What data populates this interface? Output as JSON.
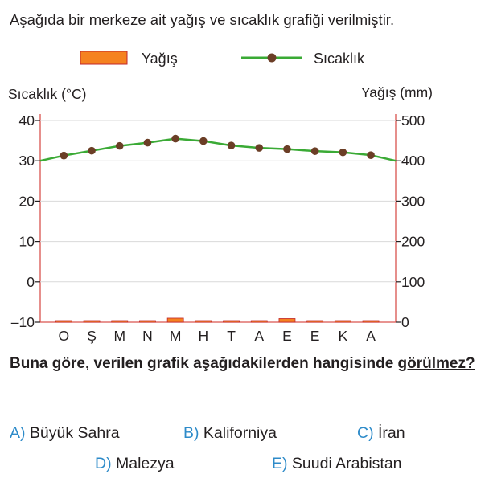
{
  "intro": "Aşağıda bir merkeze ait yağış ve sıcaklık grafiği verilmiştir.",
  "chart_data": {
    "type": "bar+line",
    "categories": [
      "O",
      "Ş",
      "M",
      "N",
      "M",
      "H",
      "T",
      "A",
      "E",
      "E",
      "K",
      "A"
    ],
    "legend": {
      "rain": "Yağış",
      "temp": "Sıcaklık"
    },
    "left_axis": {
      "label": "Sıcaklık (°C)",
      "ylim": [
        -10,
        40
      ],
      "ticks": [
        "40",
        "30",
        "20",
        "10",
        "0",
        "–10"
      ],
      "tick_values": [
        40,
        30,
        20,
        10,
        0,
        -10
      ]
    },
    "right_axis": {
      "label": "Yağış (mm)",
      "ylim": [
        0,
        500
      ],
      "ticks": [
        "500",
        "400",
        "300",
        "200",
        "100",
        "0"
      ],
      "tick_values": [
        500,
        400,
        300,
        200,
        100,
        0
      ]
    },
    "series": [
      {
        "name": "Sıcaklık",
        "axis": "left",
        "values": [
          31.3,
          32.5,
          33.7,
          34.5,
          35.5,
          34.9,
          33.8,
          33.2,
          32.9,
          32.4,
          32.1,
          31.4
        ],
        "ends": [
          30,
          30
        ]
      },
      {
        "name": "Yağış",
        "axis": "right",
        "values": [
          3,
          3,
          3,
          2,
          10,
          3,
          3,
          3,
          9,
          3,
          3,
          3
        ]
      }
    ],
    "colors": {
      "rain": "#f58220",
      "rain_border": "#c1272d",
      "temp_line": "#3aaa35",
      "temp_marker": "#6b3e26",
      "axis": "#d9534f"
    }
  },
  "question": {
    "part1": "Buna göre, verilen grafik aşağıdakilerden hangisinde ",
    "part2": "görülmez?"
  },
  "options": [
    {
      "letter": "A)",
      "text": "Büyük Sahra"
    },
    {
      "letter": "B)",
      "text": "Kaliforniya"
    },
    {
      "letter": "C)",
      "text": "İran"
    },
    {
      "letter": "D)",
      "text": "Malezya"
    },
    {
      "letter": "E)",
      "text": "Suudi Arabistan"
    }
  ]
}
